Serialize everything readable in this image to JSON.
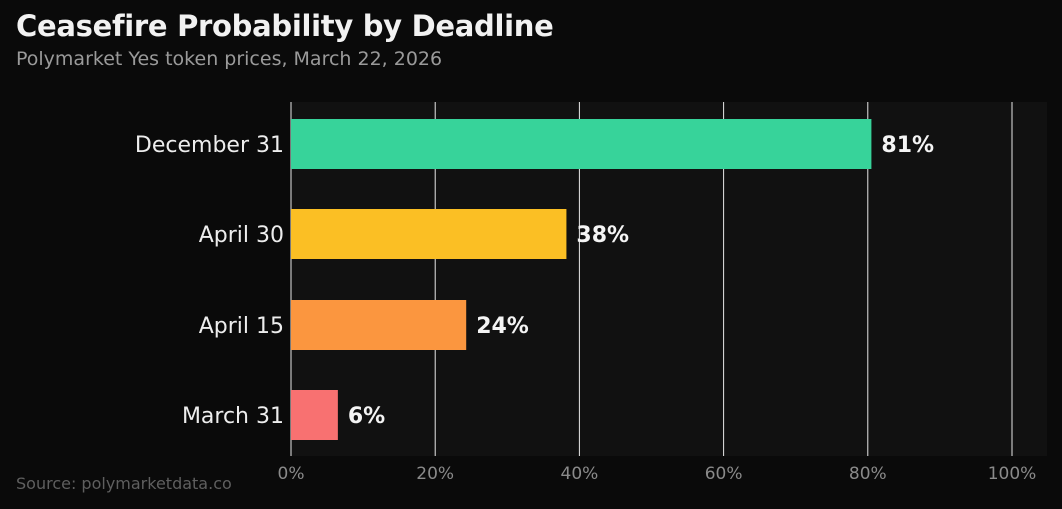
{
  "chart_data": {
    "type": "bar",
    "orientation": "horizontal",
    "title": "Ceasefire Probability by Deadline",
    "subtitle": "Polymarket Yes token prices, March 22, 2026",
    "source": "Source: polymarketdata.co",
    "categories": [
      "December 31",
      "April 30",
      "April 15",
      "March 31"
    ],
    "values": [
      80.5,
      38.2,
      24.3,
      6.5
    ],
    "value_labels": [
      "81%",
      "38%",
      "24%",
      "6%"
    ],
    "colors": [
      "#37d39a",
      "#fbbf24",
      "#fb963f",
      "#f87171"
    ],
    "xlim": [
      0,
      100
    ],
    "xticks": [
      0,
      20,
      40,
      60,
      80,
      100
    ],
    "xtick_labels": [
      "0%",
      "20%",
      "40%",
      "60%",
      "80%",
      "100%"
    ],
    "grid": "vertical",
    "xlabel": "",
    "ylabel": ""
  },
  "theme": {
    "background": "#0a0a0a",
    "plot_background": "#111111",
    "grid_color": "#e8e8e8"
  }
}
